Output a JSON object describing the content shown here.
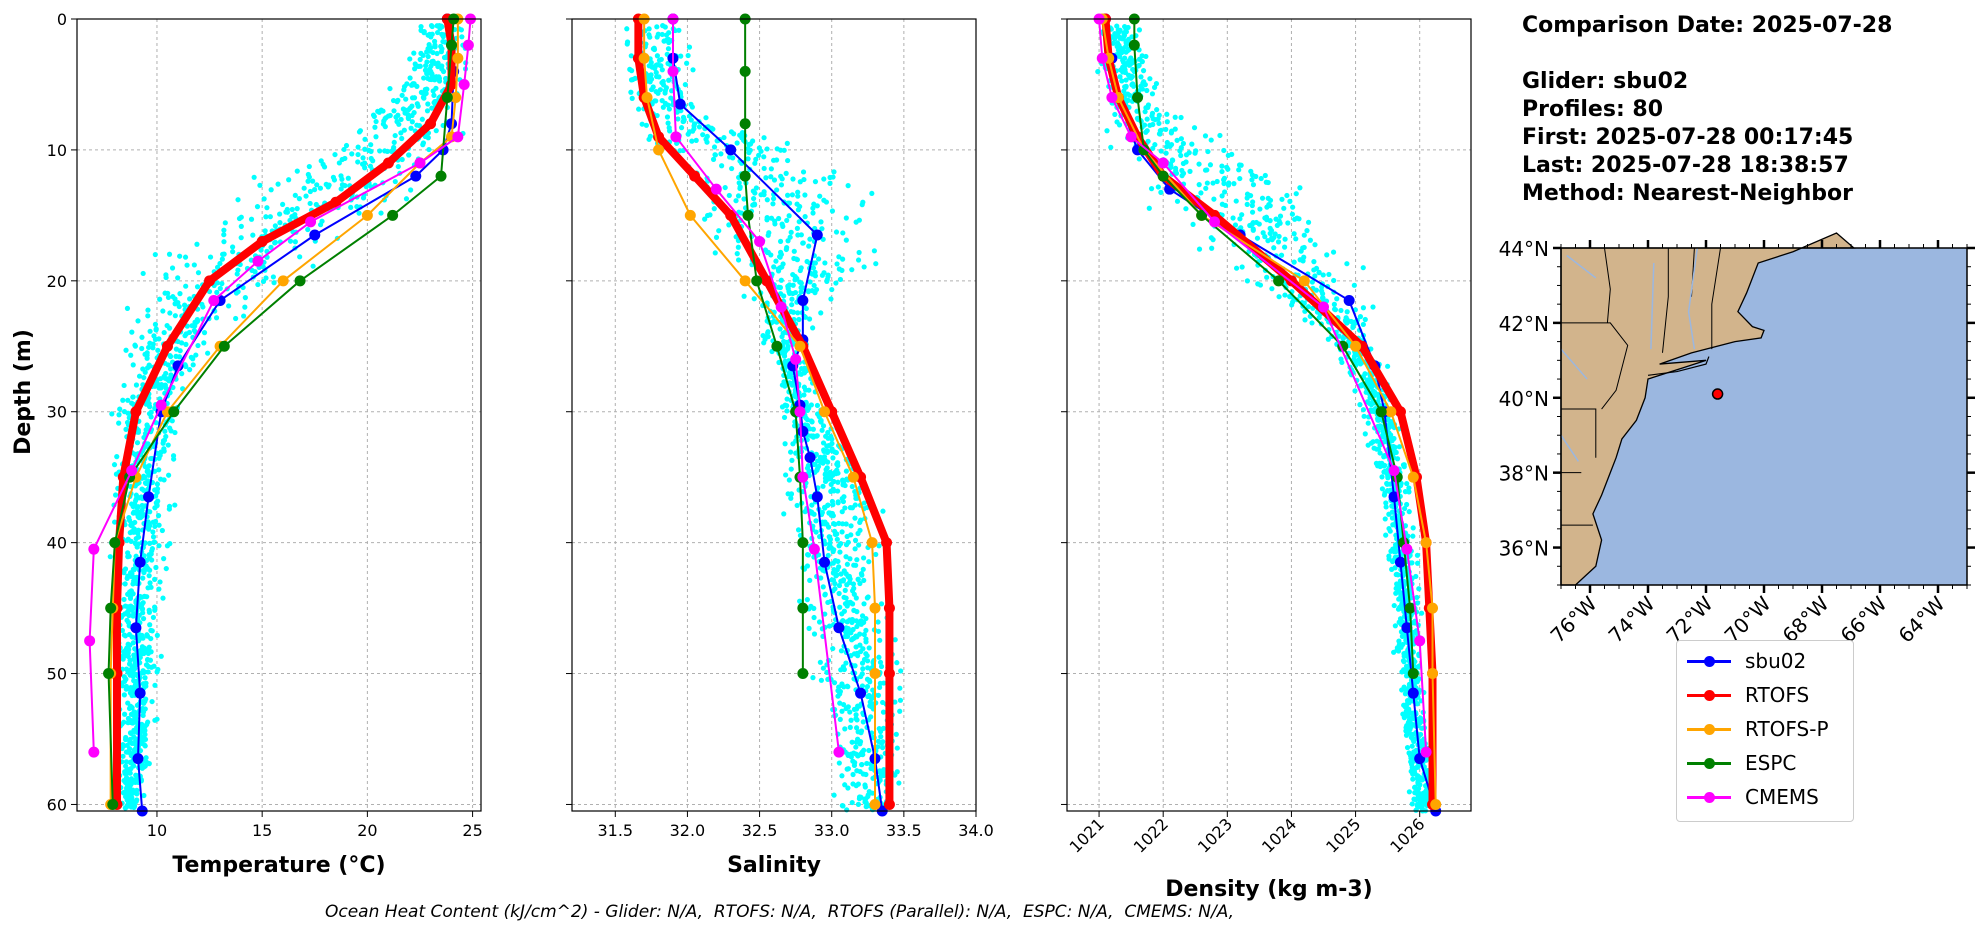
{
  "info": {
    "comparison_date": "Comparison Date: 2025-07-28",
    "glider": "Glider: sbu02",
    "profiles": "Profiles: 80",
    "first": "First: 2025-07-28 00:17:45",
    "last": "Last: 2025-07-28 18:38:57",
    "method": "Method: Nearest-Neighbor"
  },
  "footer": "Ocean Heat Content (kJ/cm^2) - Glider: N/A,  RTOFS: N/A,  RTOFS (Parallel): N/A,  ESPC: N/A,  CMEMS: N/A,",
  "colors": {
    "sbu02": "#0000ff",
    "RTOFS": "#ff0000",
    "RTOFS-P": "#ffa500",
    "ESPC": "#008000",
    "CMEMS": "#ff00ff",
    "glider_points": "#00ffff",
    "land": "#d2b48c",
    "ocean": "#9bb7e0"
  },
  "legend": [
    "sbu02",
    "RTOFS",
    "RTOFS-P",
    "ESPC",
    "CMEMS"
  ],
  "chart_data": [
    {
      "type": "line",
      "xlabel": "Temperature (°C)",
      "ylabel": "Depth (m)",
      "xlim": [
        6.2,
        25.4
      ],
      "ylim": [
        60.5,
        0
      ],
      "xticks": [
        10,
        15,
        20,
        25
      ],
      "yticks": [
        0,
        10,
        20,
        30,
        40,
        50,
        60
      ],
      "grid": true,
      "scatter": {
        "name": "glider",
        "band": [
          [
            1,
            22,
            25
          ],
          [
            5,
            21,
            25
          ],
          [
            8,
            19,
            25
          ],
          [
            10,
            17,
            25
          ],
          [
            12,
            14,
            24
          ],
          [
            15,
            11,
            22
          ],
          [
            17,
            9,
            20
          ],
          [
            20,
            8,
            17
          ],
          [
            22,
            8,
            15
          ],
          [
            25,
            8,
            13
          ],
          [
            28,
            8,
            12
          ],
          [
            30,
            7.5,
            11.5
          ],
          [
            35,
            7.5,
            11
          ],
          [
            40,
            7.5,
            11
          ],
          [
            45,
            7.5,
            10.5
          ],
          [
            50,
            7.5,
            10.5
          ],
          [
            55,
            8,
            10
          ],
          [
            60,
            8,
            9.5
          ]
        ]
      },
      "series": [
        {
          "name": "sbu02",
          "x": [
            23.8,
            24.1,
            24.0,
            23.6,
            22.3,
            17.5,
            13.0,
            11.0,
            10.2,
            9.6,
            9.2,
            9.0,
            9.2,
            9.1,
            9.3
          ],
          "y": [
            0,
            4,
            8,
            10,
            12,
            16.5,
            21.5,
            26.5,
            30,
            36.5,
            41.5,
            46.5,
            51.5,
            56.5,
            60.5
          ]
        },
        {
          "name": "RTOFS",
          "x": [
            23.8,
            24.0,
            24.0,
            23.0,
            21.0,
            18.5,
            15.0,
            12.5,
            10.5,
            9.0,
            8.4,
            8.2,
            8.1,
            8.1,
            8.1
          ],
          "y": [
            0,
            2,
            5,
            8,
            11,
            14,
            17,
            20,
            25,
            30,
            35,
            40,
            45,
            50,
            60
          ]
        },
        {
          "name": "RTOFS-P",
          "x": [
            24.3,
            24.3,
            24.2,
            24.0,
            22.5,
            20.0,
            16.0,
            13.0,
            10.5,
            9.0,
            8.0,
            7.9,
            7.8,
            7.8
          ],
          "y": [
            0,
            3,
            6,
            9,
            11,
            15,
            20,
            25,
            30,
            35,
            40,
            45,
            50,
            60
          ]
        },
        {
          "name": "ESPC",
          "x": [
            24.1,
            24.0,
            23.8,
            23.5,
            21.2,
            16.8,
            13.2,
            10.8,
            8.7,
            8.0,
            7.8,
            7.7,
            7.9
          ],
          "y": [
            0,
            2,
            6,
            12,
            15,
            20,
            25,
            30,
            35,
            40,
            45,
            50,
            60
          ]
        },
        {
          "name": "CMEMS",
          "x": [
            24.9,
            24.8,
            24.6,
            24.3,
            22.5,
            17.3,
            14.8,
            12.7,
            10.2,
            8.8,
            7.0,
            6.8,
            7.0
          ],
          "y": [
            0,
            2,
            5,
            9,
            11,
            15.5,
            18.5,
            21.5,
            29.5,
            34.5,
            40.5,
            47.5,
            56
          ]
        }
      ]
    },
    {
      "type": "line",
      "xlabel": "Salinity",
      "xlim": [
        31.2,
        34.0
      ],
      "ylim": [
        60.5,
        0
      ],
      "xticks": [
        31.5,
        32.0,
        32.5,
        33.0,
        33.5,
        34.0
      ],
      "yticks": [
        0,
        10,
        20,
        30,
        40,
        50,
        60
      ],
      "grid": true,
      "scatter": {
        "name": "glider",
        "band": [
          [
            1,
            31.5,
            32.1
          ],
          [
            5,
            31.5,
            32.1
          ],
          [
            8,
            31.5,
            32.3
          ],
          [
            10,
            31.5,
            33.2
          ],
          [
            12,
            31.7,
            33.4
          ],
          [
            15,
            31.8,
            33.5
          ],
          [
            18,
            32.0,
            33.5
          ],
          [
            20,
            32.2,
            33.3
          ],
          [
            22,
            32.4,
            33.0
          ],
          [
            25,
            32.5,
            32.9
          ],
          [
            28,
            32.6,
            32.9
          ],
          [
            30,
            32.6,
            33.0
          ],
          [
            35,
            32.6,
            33.4
          ],
          [
            40,
            32.6,
            33.4
          ],
          [
            45,
            32.7,
            33.5
          ],
          [
            50,
            32.8,
            33.6
          ],
          [
            55,
            32.9,
            33.6
          ],
          [
            60,
            33.0,
            33.6
          ]
        ]
      },
      "series": [
        {
          "name": "sbu02",
          "x": [
            31.9,
            31.9,
            31.95,
            32.3,
            32.9,
            32.8,
            32.8,
            32.73,
            32.78,
            32.8,
            32.85,
            32.9,
            32.95,
            33.05,
            33.2,
            33.3,
            33.35
          ],
          "y": [
            0,
            3,
            6.5,
            10,
            16.5,
            21.5,
            24.5,
            26.5,
            29.5,
            31.5,
            33.5,
            36.5,
            41.5,
            46.5,
            51.5,
            56.5,
            60.5
          ]
        },
        {
          "name": "RTOFS",
          "x": [
            31.66,
            31.66,
            31.7,
            31.8,
            32.05,
            32.3,
            32.55,
            32.8,
            33.0,
            33.2,
            33.38,
            33.4,
            33.4,
            33.4
          ],
          "y": [
            0,
            3,
            6,
            9,
            12,
            15,
            20,
            25,
            30,
            35,
            40,
            45,
            50,
            60
          ]
        },
        {
          "name": "RTOFS-P",
          "x": [
            31.7,
            31.7,
            31.72,
            31.8,
            32.02,
            32.4,
            32.78,
            32.95,
            33.15,
            33.28,
            33.3,
            33.3,
            33.3
          ],
          "y": [
            0,
            3,
            6,
            10,
            15,
            20,
            25,
            30,
            35,
            40,
            45,
            50,
            60
          ]
        },
        {
          "name": "ESPC",
          "x": [
            32.4,
            32.4,
            32.4,
            32.4,
            32.42,
            32.48,
            32.62,
            32.75,
            32.78,
            32.8,
            32.8,
            32.8
          ],
          "y": [
            0,
            4,
            8,
            12,
            15,
            20,
            25,
            30,
            35,
            40,
            45,
            50
          ]
        },
        {
          "name": "CMEMS",
          "x": [
            31.9,
            31.9,
            31.92,
            32.2,
            32.5,
            32.65,
            32.75,
            32.78,
            32.8,
            32.88,
            33.05
          ],
          "y": [
            0,
            4,
            9,
            13,
            17,
            22,
            26,
            30,
            35,
            40.5,
            56
          ]
        }
      ]
    },
    {
      "type": "line",
      "xlabel": "Density (kg m-3)",
      "xlim": [
        1020.5,
        1026.8
      ],
      "ylim": [
        60.5,
        0
      ],
      "xticks": [
        1021,
        1022,
        1023,
        1024,
        1025,
        1026
      ],
      "yticks": [
        0,
        10,
        20,
        30,
        40,
        50,
        60
      ],
      "grid": true,
      "scatter": {
        "name": "glider",
        "band": [
          [
            1,
            1020.9,
            1021.7
          ],
          [
            5,
            1020.9,
            1022.0
          ],
          [
            8,
            1020.9,
            1022.5
          ],
          [
            10,
            1020.9,
            1023.5
          ],
          [
            12,
            1021.2,
            1024.5
          ],
          [
            15,
            1021.6,
            1025.0
          ],
          [
            18,
            1022.3,
            1025.2
          ],
          [
            20,
            1023.0,
            1025.3
          ],
          [
            22,
            1023.8,
            1025.4
          ],
          [
            25,
            1024.5,
            1025.5
          ],
          [
            28,
            1024.9,
            1025.6
          ],
          [
            30,
            1025.0,
            1025.7
          ],
          [
            35,
            1025.3,
            1025.9
          ],
          [
            40,
            1025.4,
            1026.0
          ],
          [
            45,
            1025.5,
            1026.1
          ],
          [
            50,
            1025.6,
            1026.1
          ],
          [
            55,
            1025.7,
            1026.2
          ],
          [
            60,
            1025.8,
            1026.3
          ]
        ]
      },
      "series": [
        {
          "name": "sbu02",
          "x": [
            1021.1,
            1021.2,
            1021.3,
            1021.6,
            1022.1,
            1023.2,
            1024.9,
            1025.3,
            1025.45,
            1025.6,
            1025.7,
            1025.8,
            1025.9,
            1026.0,
            1026.25
          ],
          "y": [
            0,
            3,
            6,
            10,
            13,
            16.5,
            21.5,
            26.5,
            30,
            36.5,
            41.5,
            46.5,
            51.5,
            56.5,
            60.5
          ]
        },
        {
          "name": "RTOFS",
          "x": [
            1021.1,
            1021.15,
            1021.3,
            1021.6,
            1022.0,
            1022.8,
            1024.0,
            1025.1,
            1025.7,
            1025.95,
            1026.1,
            1026.15,
            1026.2,
            1026.2
          ],
          "y": [
            0,
            3,
            6,
            9,
            12,
            15,
            20,
            25,
            30,
            35,
            40,
            45,
            50,
            60
          ]
        },
        {
          "name": "RTOFS-P",
          "x": [
            1021.05,
            1021.15,
            1021.3,
            1021.7,
            1022.6,
            1024.2,
            1025.0,
            1025.55,
            1025.9,
            1026.1,
            1026.2,
            1026.2,
            1026.25
          ],
          "y": [
            0,
            3,
            6,
            10,
            15,
            20,
            25,
            30,
            35,
            40,
            45,
            50,
            60
          ]
        },
        {
          "name": "ESPC",
          "x": [
            1021.55,
            1021.55,
            1021.6,
            1021.7,
            1022.0,
            1022.6,
            1023.8,
            1024.8,
            1025.4,
            1025.65,
            1025.75,
            1025.85,
            1025.9
          ],
          "y": [
            0,
            2,
            6,
            10,
            12,
            15,
            20,
            25,
            30,
            35,
            40,
            45,
            50
          ]
        },
        {
          "name": "CMEMS",
          "x": [
            1021.0,
            1021.05,
            1021.2,
            1021.5,
            1022.0,
            1022.8,
            1024.5,
            1025.6,
            1025.8,
            1026.0,
            1026.1
          ],
          "y": [
            0,
            3,
            6,
            9,
            11,
            15.5,
            22,
            34.5,
            40.5,
            47.5,
            56
          ]
        }
      ]
    }
  ],
  "map": {
    "lon_range": [
      -77,
      -63
    ],
    "lat_range": [
      35,
      44
    ],
    "lat_ticks": [
      "36°N",
      "38°N",
      "40°N",
      "42°N",
      "44°N"
    ],
    "lon_ticks": [
      "76°W",
      "74°W",
      "72°W",
      "70°W",
      "68°W",
      "66°W",
      "64°W"
    ],
    "glider_position": {
      "lon": -71.6,
      "lat": 40.1
    }
  }
}
